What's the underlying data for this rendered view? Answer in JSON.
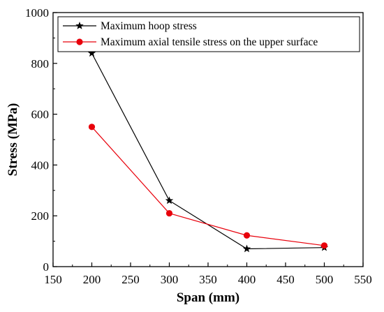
{
  "chart_data": {
    "type": "line",
    "title": "",
    "xlabel": "Span (mm)",
    "ylabel": "Stress (MPa)",
    "xlim": [
      150,
      550
    ],
    "ylim": [
      0,
      1000
    ],
    "x_ticks": [
      150,
      200,
      250,
      300,
      350,
      400,
      450,
      500,
      550
    ],
    "y_ticks": [
      0,
      200,
      400,
      600,
      800,
      1000
    ],
    "grid": false,
    "legend_position": "top-right",
    "series": [
      {
        "name": "Maximum hoop stress",
        "color": "#000000",
        "marker": "star",
        "x": [
          200,
          300,
          400,
          500
        ],
        "y": [
          840,
          260,
          70,
          75
        ]
      },
      {
        "name": "Maximum axial tensile stress on the upper surface",
        "color": "#e8000b",
        "marker": "circle",
        "x": [
          200,
          300,
          400,
          500
        ],
        "y": [
          550,
          210,
          123,
          83
        ]
      }
    ]
  }
}
